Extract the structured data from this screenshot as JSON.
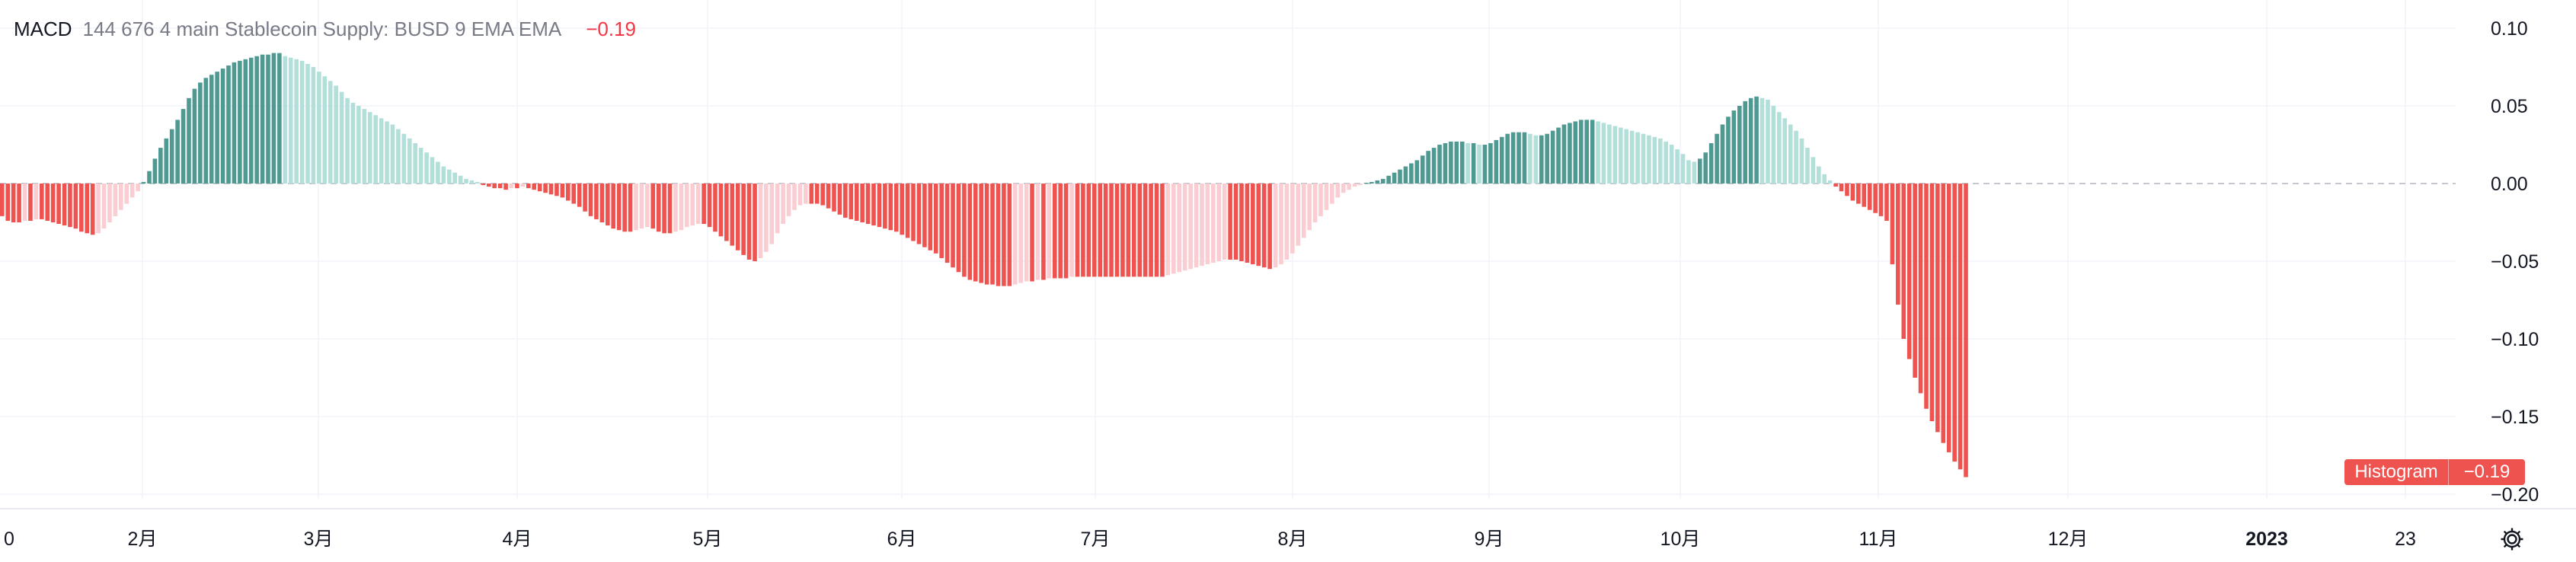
{
  "legend": {
    "indicator": "MACD",
    "params": "144 676 4 main Stablecoin Supply: BUSD 9 EMA EMA",
    "value": "−0.19"
  },
  "price_tag": {
    "label": "Histogram",
    "value": "−0.19"
  },
  "colors": {
    "up_strong": "#4e9a92",
    "up_weak": "#b2dfd9",
    "down_strong": "#ef5350",
    "down_weak": "#f9cdd1",
    "grid": "#f0f3fa",
    "text": "#131722"
  },
  "icons": {
    "settings": "gear-icon"
  },
  "chart_data": {
    "type": "bar",
    "series": [
      {
        "name": "Histogram",
        "first_bar_date": "2022-01-01",
        "values": [
          -0.021,
          -0.024,
          -0.025,
          -0.025,
          -0.024,
          -0.024,
          -0.023,
          -0.023,
          -0.024,
          -0.025,
          -0.026,
          -0.027,
          -0.028,
          -0.029,
          -0.031,
          -0.032,
          -0.033,
          -0.032,
          -0.029,
          -0.025,
          -0.021,
          -0.017,
          -0.013,
          -0.009,
          -0.005,
          0.001,
          0.008,
          0.016,
          0.023,
          0.029,
          0.035,
          0.041,
          0.048,
          0.055,
          0.061,
          0.065,
          0.068,
          0.07,
          0.072,
          0.074,
          0.076,
          0.078,
          0.079,
          0.08,
          0.081,
          0.082,
          0.083,
          0.083,
          0.084,
          0.084,
          0.082,
          0.081,
          0.08,
          0.079,
          0.077,
          0.075,
          0.072,
          0.069,
          0.066,
          0.063,
          0.059,
          0.055,
          0.052,
          0.05,
          0.048,
          0.046,
          0.044,
          0.042,
          0.04,
          0.038,
          0.035,
          0.032,
          0.029,
          0.026,
          0.023,
          0.02,
          0.017,
          0.014,
          0.011,
          0.009,
          0.007,
          0.005,
          0.003,
          0.002,
          0.001,
          -0.001,
          -0.002,
          -0.003,
          -0.003,
          -0.004,
          -0.003,
          -0.003,
          -0.002,
          -0.003,
          -0.004,
          -0.005,
          -0.006,
          -0.007,
          -0.008,
          -0.009,
          -0.011,
          -0.013,
          -0.015,
          -0.018,
          -0.021,
          -0.023,
          -0.025,
          -0.027,
          -0.029,
          -0.03,
          -0.031,
          -0.031,
          -0.03,
          -0.029,
          -0.028,
          -0.029,
          -0.031,
          -0.032,
          -0.032,
          -0.031,
          -0.03,
          -0.028,
          -0.027,
          -0.026,
          -0.026,
          -0.028,
          -0.031,
          -0.034,
          -0.037,
          -0.04,
          -0.043,
          -0.046,
          -0.049,
          -0.05,
          -0.048,
          -0.044,
          -0.039,
          -0.032,
          -0.026,
          -0.021,
          -0.017,
          -0.014,
          -0.013,
          -0.013,
          -0.013,
          -0.014,
          -0.016,
          -0.018,
          -0.02,
          -0.022,
          -0.023,
          -0.024,
          -0.025,
          -0.026,
          -0.027,
          -0.028,
          -0.029,
          -0.03,
          -0.031,
          -0.033,
          -0.035,
          -0.037,
          -0.039,
          -0.041,
          -0.043,
          -0.045,
          -0.048,
          -0.051,
          -0.054,
          -0.057,
          -0.06,
          -0.062,
          -0.063,
          -0.064,
          -0.065,
          -0.065,
          -0.066,
          -0.066,
          -0.066,
          -0.065,
          -0.064,
          -0.063,
          -0.063,
          -0.062,
          -0.062,
          -0.061,
          -0.061,
          -0.061,
          -0.061,
          -0.06,
          -0.06,
          -0.06,
          -0.06,
          -0.06,
          -0.06,
          -0.06,
          -0.06,
          -0.06,
          -0.06,
          -0.06,
          -0.06,
          -0.06,
          -0.06,
          -0.06,
          -0.06,
          -0.06,
          -0.059,
          -0.058,
          -0.057,
          -0.056,
          -0.055,
          -0.054,
          -0.053,
          -0.052,
          -0.051,
          -0.05,
          -0.049,
          -0.049,
          -0.049,
          -0.05,
          -0.051,
          -0.052,
          -0.053,
          -0.054,
          -0.055,
          -0.054,
          -0.052,
          -0.049,
          -0.045,
          -0.04,
          -0.035,
          -0.03,
          -0.025,
          -0.021,
          -0.017,
          -0.013,
          -0.009,
          -0.006,
          -0.004,
          -0.002,
          -0.001,
          0.0005,
          0.001,
          0.002,
          0.003,
          0.005,
          0.007,
          0.009,
          0.011,
          0.013,
          0.015,
          0.018,
          0.021,
          0.023,
          0.025,
          0.026,
          0.027,
          0.027,
          0.027,
          0.026,
          0.026,
          0.025,
          0.025,
          0.026,
          0.028,
          0.03,
          0.032,
          0.033,
          0.033,
          0.033,
          0.032,
          0.031,
          0.031,
          0.032,
          0.034,
          0.036,
          0.038,
          0.039,
          0.04,
          0.041,
          0.041,
          0.041,
          0.04,
          0.039,
          0.038,
          0.037,
          0.036,
          0.035,
          0.034,
          0.033,
          0.032,
          0.031,
          0.03,
          0.029,
          0.027,
          0.025,
          0.022,
          0.019,
          0.015,
          0.014,
          0.016,
          0.02,
          0.026,
          0.032,
          0.038,
          0.043,
          0.047,
          0.05,
          0.053,
          0.055,
          0.056,
          0.055,
          0.054,
          0.05,
          0.046,
          0.042,
          0.038,
          0.034,
          0.029,
          0.023,
          0.017,
          0.011,
          0.006,
          0.002,
          -0.002,
          -0.005,
          -0.008,
          -0.011,
          -0.013,
          -0.015,
          -0.017,
          -0.019,
          -0.021,
          -0.024,
          -0.052,
          -0.078,
          -0.1,
          -0.113,
          -0.125,
          -0.135,
          -0.145,
          -0.153,
          -0.16,
          -0.167,
          -0.173,
          -0.179,
          -0.184,
          -0.189
        ]
      }
    ],
    "x_tick_labels": [
      "0",
      "2月",
      "3月",
      "4月",
      "5月",
      "6月",
      "7月",
      "8月",
      "9月",
      "10月",
      "11月",
      "12月",
      "2023",
      "23"
    ],
    "y_tick_labels": [
      "0.10",
      "0.05",
      "0.00",
      "−0.05",
      "−0.10",
      "−0.15",
      "−0.20"
    ],
    "ylim": [
      -0.2,
      0.1
    ],
    "grid": true,
    "zero_line": "dashed"
  }
}
